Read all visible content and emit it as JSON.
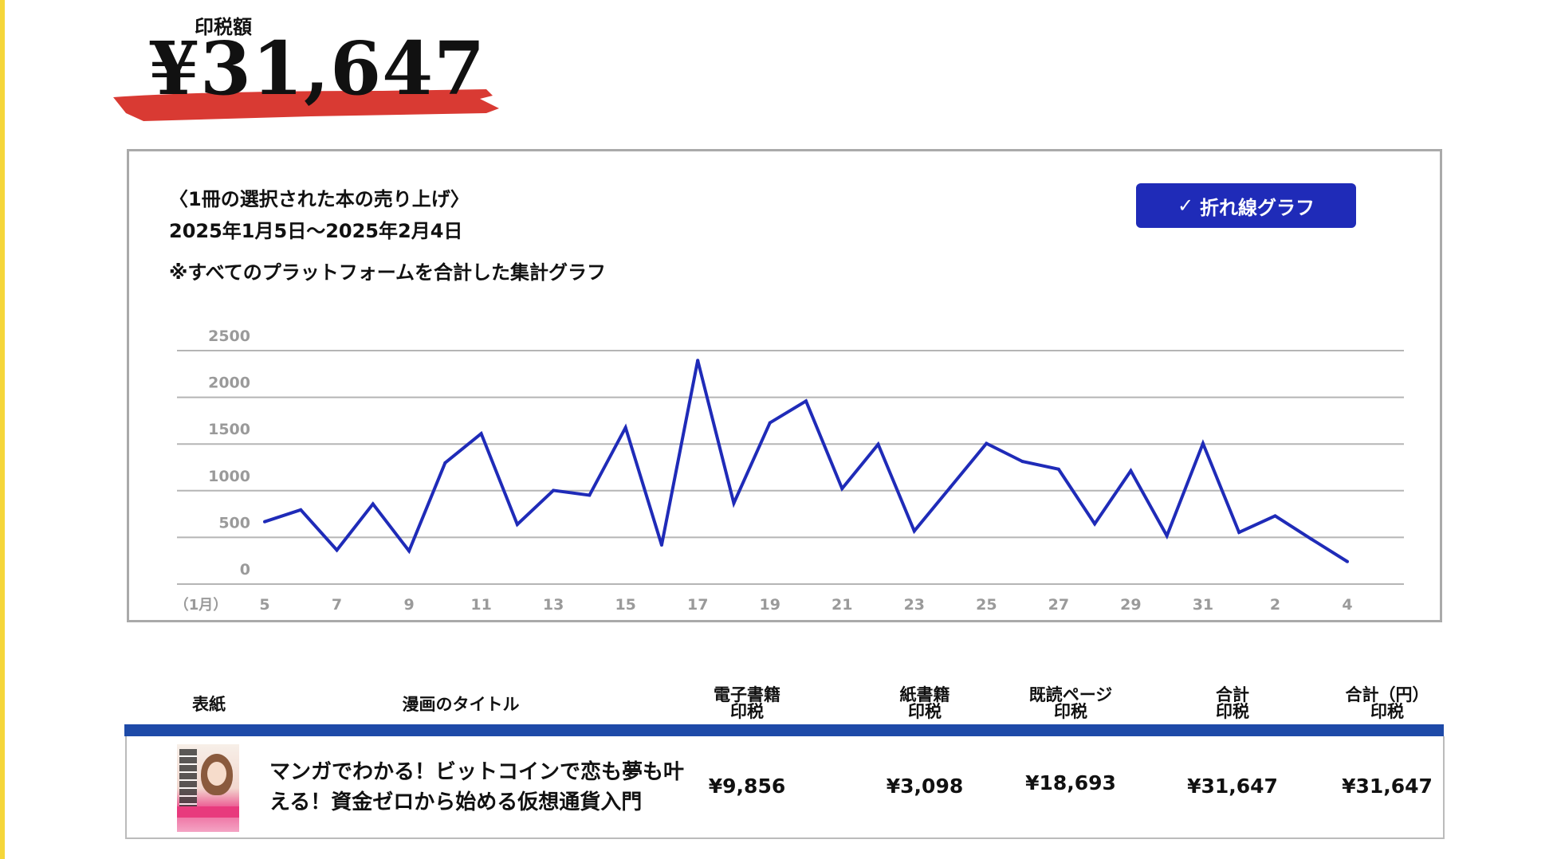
{
  "summary": {
    "label": "印税額",
    "amount": "¥31,647"
  },
  "chart_panel": {
    "title": "〈1冊の選択された本の売り上げ〉",
    "date_range": "2025年1月5日〜2025年2月4日",
    "note": "※すべてのプラットフォームを合計した集計グラフ",
    "toggle_button": {
      "check": "✓",
      "label": "折れ線グラフ"
    }
  },
  "chart_data": {
    "type": "line",
    "categories": [
      "1/5",
      "1/6",
      "1/7",
      "1/8",
      "1/9",
      "1/10",
      "1/11",
      "1/12",
      "1/13",
      "1/14",
      "1/15",
      "1/16",
      "1/17",
      "1/18",
      "1/19",
      "1/20",
      "1/21",
      "1/22",
      "1/23",
      "1/24",
      "1/25",
      "1/26",
      "1/27",
      "1/28",
      "1/29",
      "1/30",
      "1/31",
      "2/1",
      "2/2",
      "2/3",
      "2/4"
    ],
    "series": [
      {
        "values": [
          668,
          795,
          364,
          858,
          355,
          1298,
          1611,
          639,
          1003,
          952,
          1676,
          418,
          2395,
          866,
          1727,
          1960,
          1023,
          1497,
          568,
          1037,
          1506,
          1313,
          1230,
          645,
          1213,
          517,
          1506,
          554,
          730,
          483,
          241
        ]
      }
    ],
    "x_tick_labels": [
      "5",
      "7",
      "9",
      "11",
      "13",
      "15",
      "17",
      "19",
      "21",
      "23",
      "25",
      "27",
      "29",
      "31",
      "2",
      "4"
    ],
    "x_month_label": "（1月）",
    "y_ticks": [
      0,
      500,
      1000,
      1500,
      2000,
      2500
    ],
    "ylim": [
      0,
      2500
    ],
    "grid": true,
    "line_color": "#1f2bb8",
    "grid_color": "#b5b5b5"
  },
  "table": {
    "headers": [
      {
        "line1": "表紙",
        "line2": ""
      },
      {
        "line1": "漫画のタイトル",
        "line2": ""
      },
      {
        "line1": "電子書籍",
        "line2": "印税"
      },
      {
        "line1": "紙書籍",
        "line2": "印税"
      },
      {
        "line1": "既読ページ",
        "line2": "印税"
      },
      {
        "line1": "合計",
        "line2": "印税"
      },
      {
        "line1": "合計（円）",
        "line2": "印税"
      }
    ],
    "rows": [
      {
        "title": "マンガでわかる！ビットコインで恋も夢も叶える！資金ゼロから始める仮想通貨入門",
        "ebook": "¥9,856",
        "paper": "¥3,098",
        "kenp": "¥18,693",
        "total": "¥31,647",
        "total_yen": "¥31,647"
      }
    ]
  },
  "colors": {
    "accent": "#1f2bb8",
    "table_bar": "#1e4aa8",
    "brush": "#d93a33",
    "side_strip": "#f5d63a"
  }
}
